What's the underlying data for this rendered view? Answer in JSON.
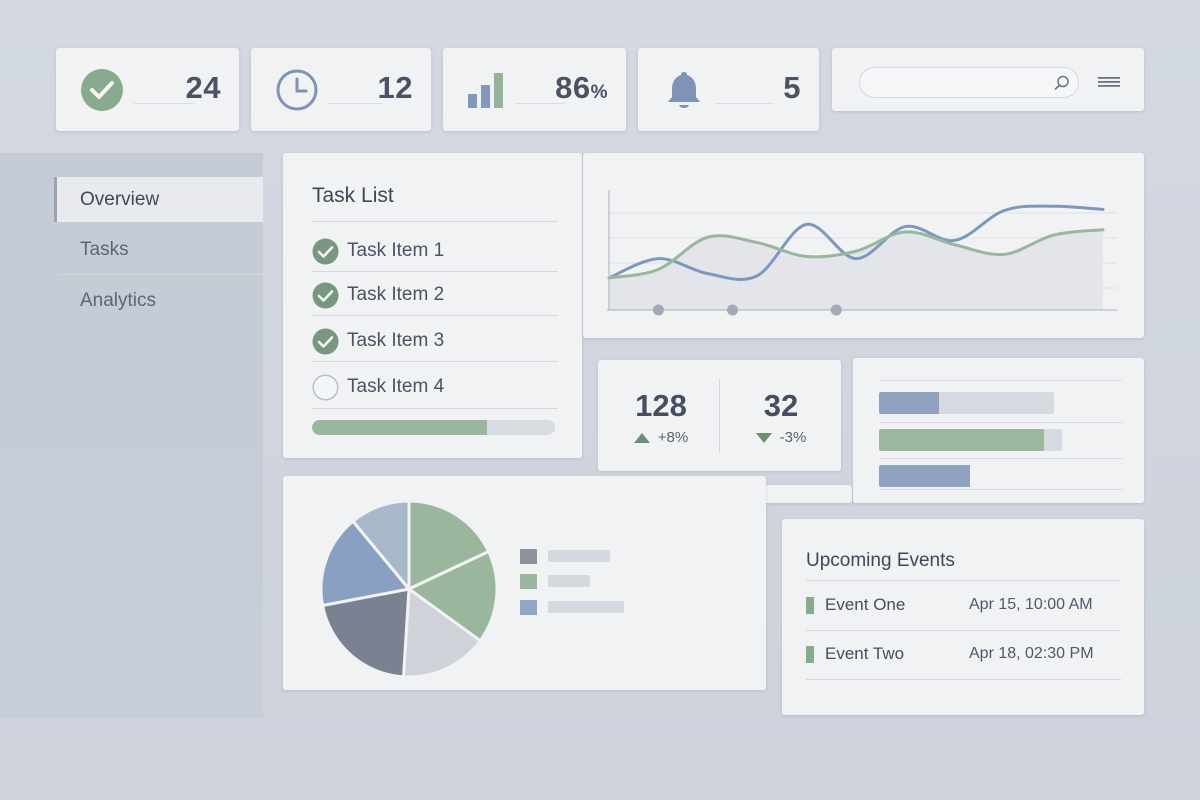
{
  "stats": [
    {
      "icon": "check-circle-icon",
      "value": "24"
    },
    {
      "icon": "clock-icon",
      "value": "12"
    },
    {
      "icon": "bar-chart-icon",
      "value": "86",
      "unit": "%"
    },
    {
      "icon": "bell-icon",
      "value": "5"
    }
  ],
  "search": {
    "placeholder": "",
    "value": ""
  },
  "sidebar": {
    "items": [
      {
        "label": "Overview",
        "active": true
      },
      {
        "label": "Tasks",
        "active": false
      },
      {
        "label": "Analytics",
        "active": false
      }
    ]
  },
  "tasks": {
    "title": "Task List",
    "items": [
      {
        "label": "Task Item 1",
        "done": true
      },
      {
        "label": "Task Item 2",
        "done": true
      },
      {
        "label": "Task Item 3",
        "done": true
      },
      {
        "label": "Task Item 4",
        "done": false
      }
    ],
    "progress": 0.72
  },
  "kpis": [
    {
      "value": "128",
      "delta": "+8%",
      "direction": "up"
    },
    {
      "value": "32",
      "delta": "-3%",
      "direction": "down"
    }
  ],
  "hbars": [
    {
      "fraction": 0.34,
      "color": "#8fa3c1"
    },
    {
      "fraction": 0.9,
      "color": "#9ab89e"
    },
    {
      "fraction": 0.72,
      "color": "#8fa3c1"
    }
  ],
  "pie": {
    "slices": [
      {
        "value": 18,
        "color": "#9ab79e"
      },
      {
        "value": 17,
        "color": "#9ab79e"
      },
      {
        "value": 16,
        "color": "#cfd2d8"
      },
      {
        "value": 21,
        "color": "#7a8291"
      },
      {
        "value": 17,
        "color": "#8aa0c3"
      },
      {
        "value": 11,
        "color": "#a9b7cb"
      }
    ],
    "legend": [
      {
        "color": "#8c939c"
      },
      {
        "color": "#9ab79e"
      },
      {
        "color": "#92a5c4"
      }
    ]
  },
  "events": {
    "title": "Upcoming Events",
    "items": [
      {
        "name": "Event One",
        "date": "Apr 15, 10:00 AM"
      },
      {
        "name": "Event Two",
        "date": "Apr 18, 02:30 PM"
      }
    ]
  },
  "colors": {
    "accent_green": "#7b9a80",
    "accent_blue": "#7f97bd",
    "card": "#f1f2f4",
    "sidebar": "#c5cbd5"
  },
  "chart_data": {
    "type": "line",
    "title": "",
    "xlabel": "",
    "ylabel": "",
    "x": [
      0,
      1,
      2,
      3,
      4,
      5,
      6,
      7,
      8,
      9,
      10
    ],
    "series": [
      {
        "color": "#7f97bd",
        "values": [
          30,
          48,
          34,
          32,
          80,
          48,
          78,
          65,
          93,
          97,
          94
        ]
      },
      {
        "color": "#98b79d",
        "values": [
          30,
          38,
          68,
          63,
          50,
          55,
          73,
          61,
          52,
          70,
          75
        ]
      }
    ],
    "ylim": [
      0,
      100
    ],
    "grid": true,
    "markers_x": [
      1,
      2.5,
      4.6
    ]
  }
}
